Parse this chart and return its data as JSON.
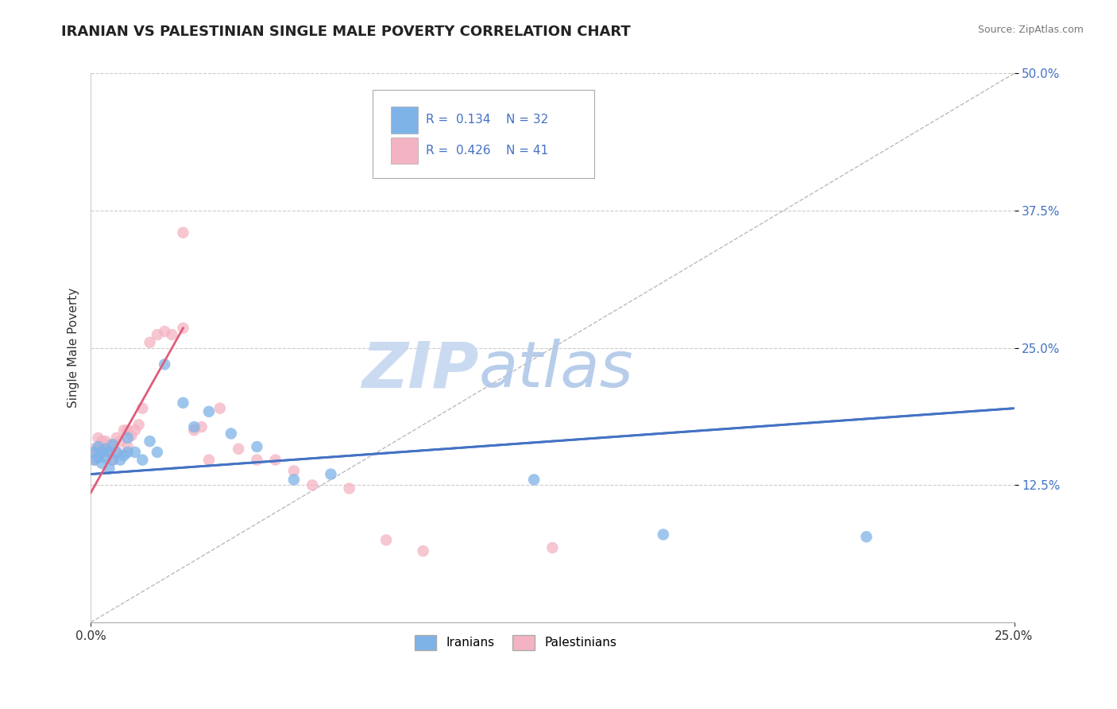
{
  "title": "IRANIAN VS PALESTINIAN SINGLE MALE POVERTY CORRELATION CHART",
  "source": "Source: ZipAtlas.com",
  "ylabel": "Single Male Poverty",
  "xlim": [
    0.0,
    0.25
  ],
  "ylim": [
    0.0,
    0.5
  ],
  "xtick_labels": [
    "0.0%",
    "25.0%"
  ],
  "ytick_labels": [
    "12.5%",
    "25.0%",
    "37.5%",
    "50.0%"
  ],
  "ytick_positions": [
    0.125,
    0.25,
    0.375,
    0.5
  ],
  "grid_color": "#cccccc",
  "background_color": "#ffffff",
  "iranian_color": "#7eb3e8",
  "palestinian_color": "#f4b3c2",
  "iranian_R": 0.134,
  "iranian_N": 32,
  "palestinian_R": 0.426,
  "palestinian_N": 41,
  "trend_iranian_color": "#4472c4",
  "trend_palestinian_color": "#e05c7a",
  "watermark_zip_color": "#c8d8ef",
  "watermark_atlas_color": "#b8cce4",
  "iranians_x": [
    0.001,
    0.001,
    0.002,
    0.002,
    0.003,
    0.003,
    0.004,
    0.004,
    0.005,
    0.005,
    0.006,
    0.006,
    0.007,
    0.008,
    0.009,
    0.01,
    0.01,
    0.012,
    0.014,
    0.016,
    0.018,
    0.02,
    0.025,
    0.028,
    0.032,
    0.038,
    0.045,
    0.055,
    0.065,
    0.12,
    0.155,
    0.21
  ],
  "iranians_y": [
    0.148,
    0.155,
    0.15,
    0.16,
    0.155,
    0.145,
    0.158,
    0.15,
    0.155,
    0.14,
    0.148,
    0.162,
    0.155,
    0.148,
    0.152,
    0.155,
    0.168,
    0.155,
    0.148,
    0.165,
    0.155,
    0.235,
    0.2,
    0.178,
    0.192,
    0.172,
    0.16,
    0.13,
    0.135,
    0.13,
    0.08,
    0.078
  ],
  "palestinians_x": [
    0.001,
    0.001,
    0.002,
    0.002,
    0.003,
    0.003,
    0.004,
    0.004,
    0.005,
    0.005,
    0.006,
    0.006,
    0.007,
    0.007,
    0.008,
    0.009,
    0.01,
    0.01,
    0.011,
    0.012,
    0.013,
    0.014,
    0.016,
    0.018,
    0.02,
    0.022,
    0.025,
    0.025,
    0.028,
    0.03,
    0.032,
    0.035,
    0.04,
    0.045,
    0.05,
    0.055,
    0.06,
    0.07,
    0.08,
    0.09,
    0.125
  ],
  "palestinians_y": [
    0.148,
    0.158,
    0.155,
    0.168,
    0.155,
    0.165,
    0.158,
    0.165,
    0.155,
    0.162,
    0.148,
    0.162,
    0.155,
    0.168,
    0.165,
    0.175,
    0.16,
    0.175,
    0.17,
    0.175,
    0.18,
    0.195,
    0.255,
    0.262,
    0.265,
    0.262,
    0.268,
    0.355,
    0.175,
    0.178,
    0.148,
    0.195,
    0.158,
    0.148,
    0.148,
    0.138,
    0.125,
    0.122,
    0.075,
    0.065,
    0.068
  ],
  "trend_iran_x0": 0.0,
  "trend_iran_y0": 0.135,
  "trend_iran_x1": 0.25,
  "trend_iran_y1": 0.195,
  "trend_pal_x0": 0.0,
  "trend_pal_y0": 0.118,
  "trend_pal_x1": 0.025,
  "trend_pal_y1": 0.268
}
